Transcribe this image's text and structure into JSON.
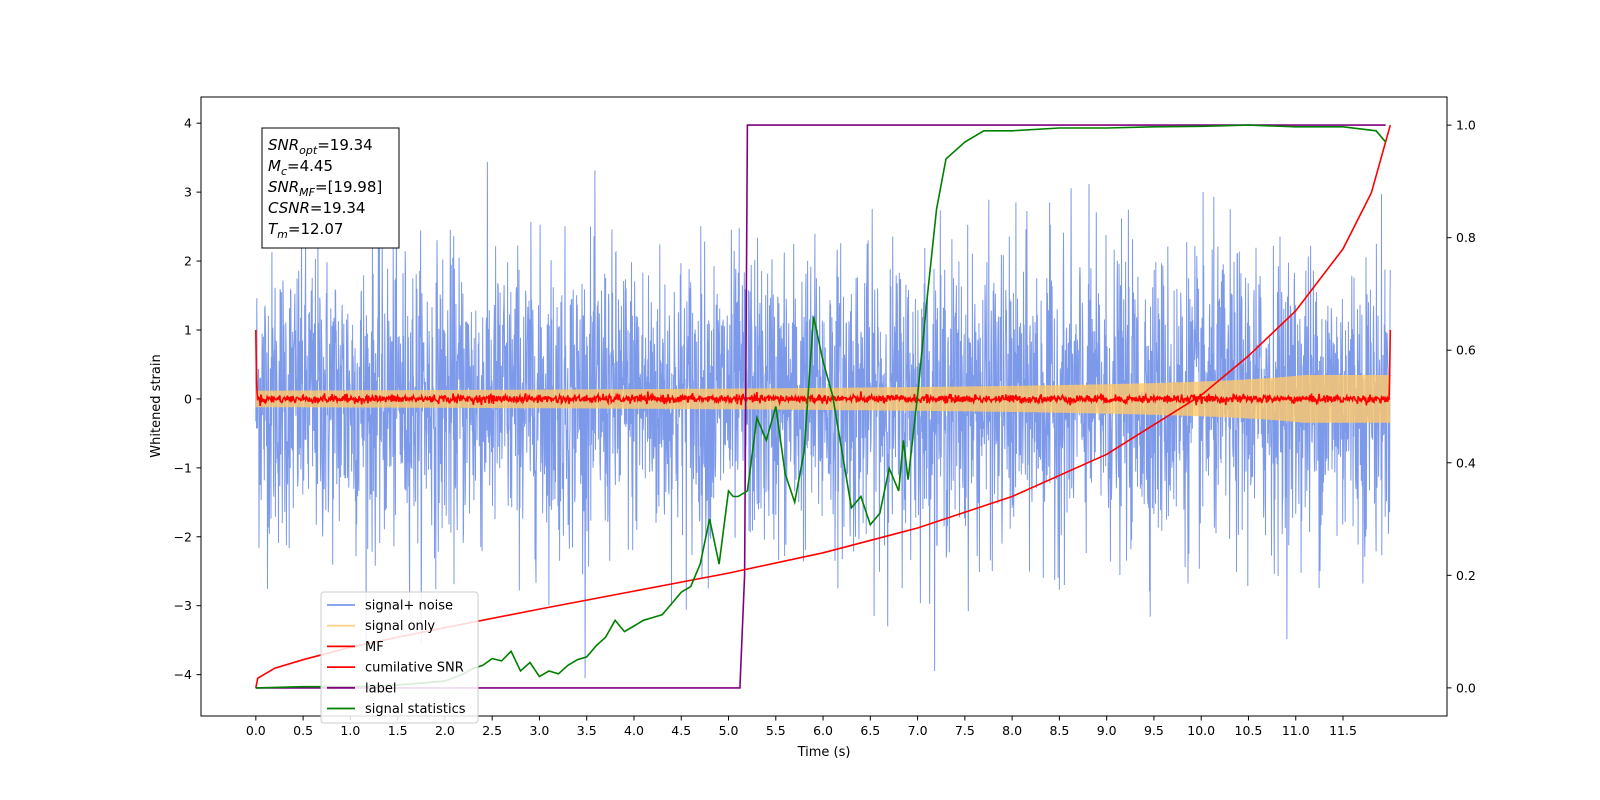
{
  "chart_data": {
    "type": "line",
    "xlabel": "Time (s)",
    "ylabel": "Whitened strain",
    "xlim": [
      -0.58,
      12.6
    ],
    "ylim": [
      -4.6,
      4.38
    ],
    "y2lim": [
      -0.05,
      1.05
    ],
    "x_ticks": [
      "0.0",
      "0.5",
      "1.0",
      "1.5",
      "2.0",
      "2.5",
      "3.0",
      "3.5",
      "4.0",
      "4.5",
      "5.0",
      "5.5",
      "6.0",
      "6.5",
      "7.0",
      "7.5",
      "8.0",
      "8.5",
      "9.0",
      "9.5",
      "10.0",
      "10.5",
      "11.0",
      "11.5"
    ],
    "y_ticks": [
      "−4",
      "−3",
      "−2",
      "−1",
      "0",
      "1",
      "2",
      "3",
      "4"
    ],
    "y2_ticks": [
      "0.0",
      "0.2",
      "0.4",
      "0.6",
      "0.8",
      "1.0"
    ],
    "duration": 12.0,
    "annotation": [
      {
        "sym": "SNR",
        "sub": "opt",
        "val": "=19.34"
      },
      {
        "sym": "M",
        "sub": "c",
        "val": "=4.45"
      },
      {
        "sym": "SNR",
        "sub": "MF",
        "val": "=[19.98]"
      },
      {
        "sym": "CSNR",
        "sub": "",
        "val": "=19.34"
      },
      {
        "sym": "T",
        "sub": "m",
        "val": "=12.07"
      }
    ],
    "legend": {
      "position": "lower-left",
      "items": [
        {
          "label": "signal+ noise",
          "color": "#6f8ee8",
          "alpha": 0.9
        },
        {
          "label": "signal only",
          "color": "#ffc869",
          "alpha": 0.8
        },
        {
          "label": "MF",
          "color": "#ff0000",
          "alpha": 1
        },
        {
          "label": "cumilative SNR",
          "color": "#ff0000",
          "alpha": 1
        },
        {
          "label": "label",
          "color": "#800080",
          "alpha": 1
        },
        {
          "label": "signal statistics",
          "color": "#008000",
          "alpha": 1
        }
      ]
    },
    "series": [
      {
        "name": "label",
        "axis": "y2",
        "color": "#800080",
        "x": [
          0.0,
          5.12,
          5.17,
          5.2,
          11.95
        ],
        "y": [
          0.0,
          0.0,
          0.2,
          1.0,
          1.0
        ]
      },
      {
        "name": "cumilative SNR",
        "axis": "y2",
        "color": "#ff0000",
        "x": [
          0.0,
          0.02,
          0.2,
          0.5,
          1.0,
          1.5,
          2.0,
          3.0,
          4.0,
          5.0,
          6.0,
          7.0,
          8.0,
          9.0,
          10.0,
          10.5,
          11.0,
          11.5,
          11.8,
          12.0
        ],
        "y": [
          0.0,
          0.017,
          0.035,
          0.05,
          0.072,
          0.09,
          0.107,
          0.14,
          0.172,
          0.204,
          0.24,
          0.284,
          0.34,
          0.415,
          0.52,
          0.59,
          0.67,
          0.78,
          0.88,
          1.0
        ]
      },
      {
        "name": "signal statistics",
        "axis": "y2",
        "color": "#008000",
        "x": [
          0.0,
          0.5,
          1.0,
          1.5,
          2.0,
          2.2,
          2.3,
          2.4,
          2.5,
          2.6,
          2.7,
          2.8,
          2.9,
          3.0,
          3.1,
          3.2,
          3.3,
          3.4,
          3.5,
          3.6,
          3.7,
          3.8,
          3.85,
          3.9,
          4.0,
          4.1,
          4.2,
          4.3,
          4.4,
          4.5,
          4.6,
          4.7,
          4.8,
          4.9,
          5.0,
          5.05,
          5.1,
          5.2,
          5.3,
          5.4,
          5.5,
          5.6,
          5.7,
          5.8,
          5.9,
          6.0,
          6.1,
          6.2,
          6.3,
          6.4,
          6.5,
          6.6,
          6.7,
          6.8,
          6.85,
          6.9,
          7.0,
          7.1,
          7.2,
          7.3,
          7.5,
          7.7,
          8.0,
          8.5,
          9.0,
          9.5,
          10.0,
          10.5,
          11.0,
          11.5,
          11.85,
          11.95
        ],
        "y": [
          0.0,
          0.002,
          0.002,
          0.005,
          0.012,
          0.025,
          0.035,
          0.04,
          0.052,
          0.048,
          0.065,
          0.03,
          0.045,
          0.02,
          0.03,
          0.025,
          0.04,
          0.05,
          0.055,
          0.075,
          0.09,
          0.12,
          0.11,
          0.1,
          0.11,
          0.12,
          0.125,
          0.13,
          0.15,
          0.17,
          0.18,
          0.22,
          0.3,
          0.22,
          0.35,
          0.34,
          0.34,
          0.35,
          0.48,
          0.44,
          0.5,
          0.38,
          0.33,
          0.42,
          0.66,
          0.58,
          0.52,
          0.42,
          0.32,
          0.34,
          0.29,
          0.31,
          0.39,
          0.35,
          0.44,
          0.37,
          0.52,
          0.69,
          0.85,
          0.94,
          0.97,
          0.99,
          0.99,
          0.995,
          0.995,
          0.997,
          0.998,
          1.0,
          0.997,
          0.997,
          0.99,
          0.97
        ]
      }
    ]
  }
}
